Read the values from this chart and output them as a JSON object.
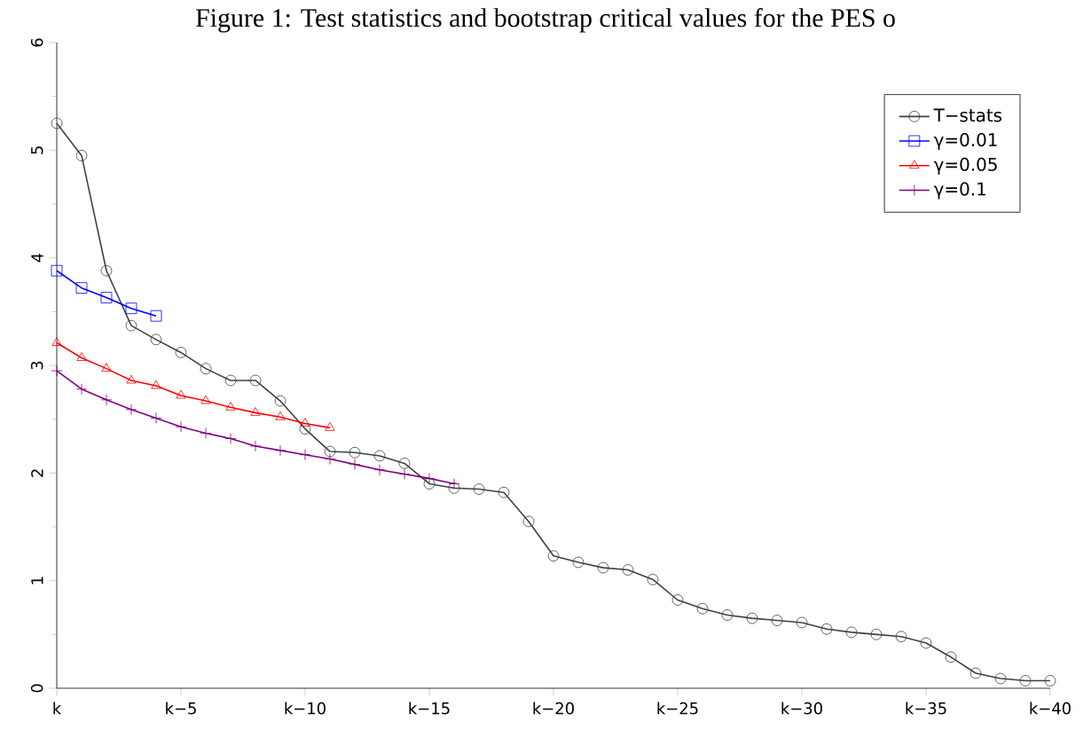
{
  "chart_data": {
    "type": "line",
    "title": "Figure 1: Test statistics and bootstrap critical values for the PES o",
    "categories": [
      "k",
      null,
      null,
      null,
      null,
      "k−5",
      null,
      null,
      null,
      null,
      "k−10",
      null,
      null,
      null,
      null,
      "k−15",
      null,
      null,
      null,
      null,
      "k−20",
      null,
      null,
      null,
      null,
      "k−25",
      null,
      null,
      null,
      null,
      "k−30",
      null,
      null,
      null,
      null,
      "k−35",
      null,
      null,
      null,
      null,
      "k−40"
    ],
    "ylim": [
      0,
      6
    ],
    "yticks": [
      0,
      1,
      2,
      3,
      4,
      5,
      6
    ],
    "legend": "top right",
    "series": [
      {
        "name": "T−stats",
        "color": "#404040",
        "marker": "circle",
        "values": [
          5.25,
          4.95,
          3.88,
          3.37,
          3.24,
          3.12,
          2.97,
          2.86,
          2.86,
          2.67,
          2.41,
          2.2,
          2.19,
          2.16,
          2.09,
          1.9,
          1.86,
          1.85,
          1.82,
          1.55,
          1.23,
          1.17,
          1.12,
          1.1,
          1.01,
          0.82,
          0.74,
          0.68,
          0.65,
          0.63,
          0.61,
          0.55,
          0.52,
          0.5,
          0.48,
          0.42,
          0.29,
          0.14,
          0.09,
          0.07,
          0.07
        ]
      },
      {
        "name": "γ=0.01",
        "color": "#0000ff",
        "marker": "square",
        "values": [
          3.88,
          3.72,
          3.63,
          3.53,
          3.46,
          null,
          null,
          null,
          null,
          null,
          null,
          null,
          null,
          null,
          null,
          null,
          null,
          null,
          null,
          null,
          null,
          null,
          null,
          null,
          null,
          null,
          null,
          null,
          null,
          null,
          null,
          null,
          null,
          null,
          null,
          null,
          null,
          null,
          null,
          null,
          null
        ]
      },
      {
        "name": "γ=0.05",
        "color": "#ff0000",
        "marker": "triangle",
        "values": [
          3.21,
          3.07,
          2.97,
          2.86,
          2.81,
          2.72,
          2.67,
          2.61,
          2.56,
          2.52,
          2.46,
          2.42,
          null,
          null,
          null,
          null,
          null,
          null,
          null,
          null,
          null,
          null,
          null,
          null,
          null,
          null,
          null,
          null,
          null,
          null,
          null,
          null,
          null,
          null,
          null,
          null,
          null,
          null,
          null,
          null,
          null
        ]
      },
      {
        "name": "γ=0.1",
        "color": "#800080",
        "marker": "cross",
        "values": [
          2.95,
          2.78,
          2.68,
          2.59,
          2.51,
          2.43,
          2.37,
          2.32,
          2.25,
          2.21,
          2.17,
          2.13,
          2.08,
          2.03,
          1.99,
          1.95,
          1.9,
          null,
          null,
          null,
          null,
          null,
          null,
          null,
          null,
          null,
          null,
          null,
          null,
          null,
          null,
          null,
          null,
          null,
          null,
          null,
          null,
          null,
          null,
          null,
          null
        ]
      }
    ]
  }
}
